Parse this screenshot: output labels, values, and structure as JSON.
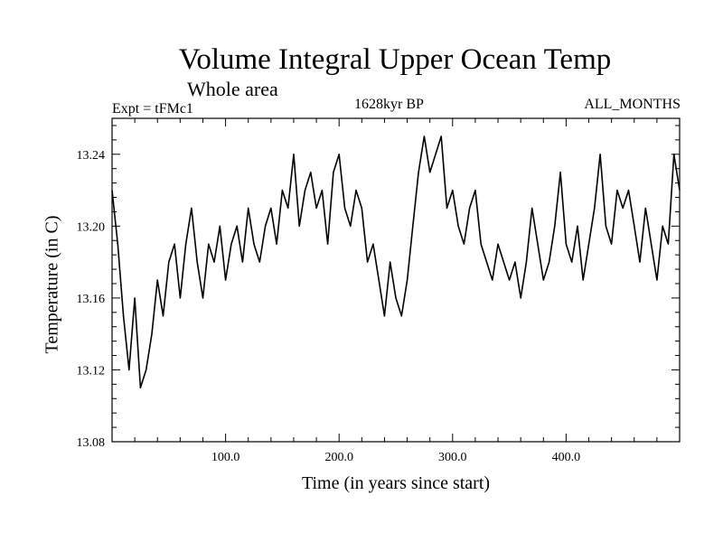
{
  "chart_data": {
    "type": "line",
    "title": "Volume Integral Upper Ocean Temp",
    "subtitle": "Whole area",
    "experiment": "Expt = tFMc1",
    "period": "1628kyr BP",
    "months": "ALL_MONTHS",
    "xlabel": "Time (in years since start)",
    "ylabel": "Temperature (in C)",
    "xlim": [
      0,
      500
    ],
    "ylim": [
      13.08,
      13.26
    ],
    "x_ticks": [
      100,
      200,
      300,
      400
    ],
    "x_tick_labels": [
      "100.0",
      "200.0",
      "300.0",
      "400.0"
    ],
    "y_ticks": [
      13.08,
      13.12,
      13.16,
      13.2,
      13.24
    ],
    "y_tick_labels": [
      "13.08",
      "13.12",
      "13.16",
      "13.20",
      "13.24"
    ],
    "series": [
      {
        "name": "Temperature",
        "x": [
          0,
          5,
          10,
          15,
          20,
          25,
          30,
          35,
          40,
          45,
          50,
          55,
          60,
          65,
          70,
          75,
          80,
          85,
          90,
          95,
          100,
          105,
          110,
          115,
          120,
          125,
          130,
          135,
          140,
          145,
          150,
          155,
          160,
          165,
          170,
          175,
          180,
          185,
          190,
          195,
          200,
          205,
          210,
          215,
          220,
          225,
          230,
          235,
          240,
          245,
          250,
          255,
          260,
          265,
          270,
          275,
          280,
          285,
          290,
          295,
          300,
          305,
          310,
          315,
          320,
          325,
          330,
          335,
          340,
          345,
          350,
          355,
          360,
          365,
          370,
          375,
          380,
          385,
          390,
          395,
          400,
          405,
          410,
          415,
          420,
          425,
          430,
          435,
          440,
          445,
          450,
          455,
          460,
          465,
          470,
          475,
          480,
          485,
          490,
          495,
          500
        ],
        "values": [
          13.22,
          13.19,
          13.15,
          13.12,
          13.16,
          13.11,
          13.12,
          13.14,
          13.17,
          13.15,
          13.18,
          13.19,
          13.16,
          13.19,
          13.21,
          13.18,
          13.16,
          13.19,
          13.18,
          13.2,
          13.17,
          13.19,
          13.2,
          13.18,
          13.21,
          13.19,
          13.18,
          13.2,
          13.21,
          13.19,
          13.22,
          13.21,
          13.24,
          13.2,
          13.22,
          13.23,
          13.21,
          13.22,
          13.19,
          13.23,
          13.24,
          13.21,
          13.2,
          13.22,
          13.21,
          13.18,
          13.19,
          13.17,
          13.15,
          13.18,
          13.16,
          13.15,
          13.17,
          13.2,
          13.23,
          13.25,
          13.23,
          13.24,
          13.25,
          13.21,
          13.22,
          13.2,
          13.19,
          13.21,
          13.22,
          13.19,
          13.18,
          13.17,
          13.19,
          13.18,
          13.17,
          13.18,
          13.16,
          13.18,
          13.21,
          13.19,
          13.17,
          13.18,
          13.2,
          13.23,
          13.19,
          13.18,
          13.2,
          13.17,
          13.19,
          13.21,
          13.24,
          13.2,
          13.19,
          13.22,
          13.21,
          13.22,
          13.2,
          13.18,
          13.21,
          13.19,
          13.17,
          13.2,
          13.19,
          13.24,
          13.22
        ]
      }
    ]
  }
}
